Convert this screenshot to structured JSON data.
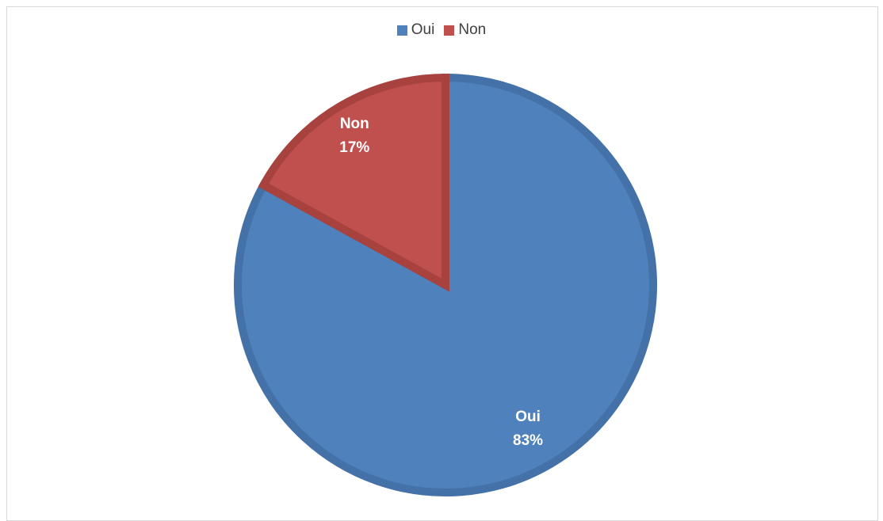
{
  "chart_data": {
    "type": "pie",
    "title": "",
    "categories": [
      "Oui",
      "Non"
    ],
    "values": [
      83,
      17
    ],
    "value_labels": [
      "83%",
      "17%"
    ],
    "colors": [
      "#4f81bd",
      "#c0504d"
    ],
    "border_colors": [
      "#4472a8",
      "#a8423f"
    ],
    "legend_position": "top-center",
    "start_angle_deg": 0,
    "direction": "clockwise"
  }
}
